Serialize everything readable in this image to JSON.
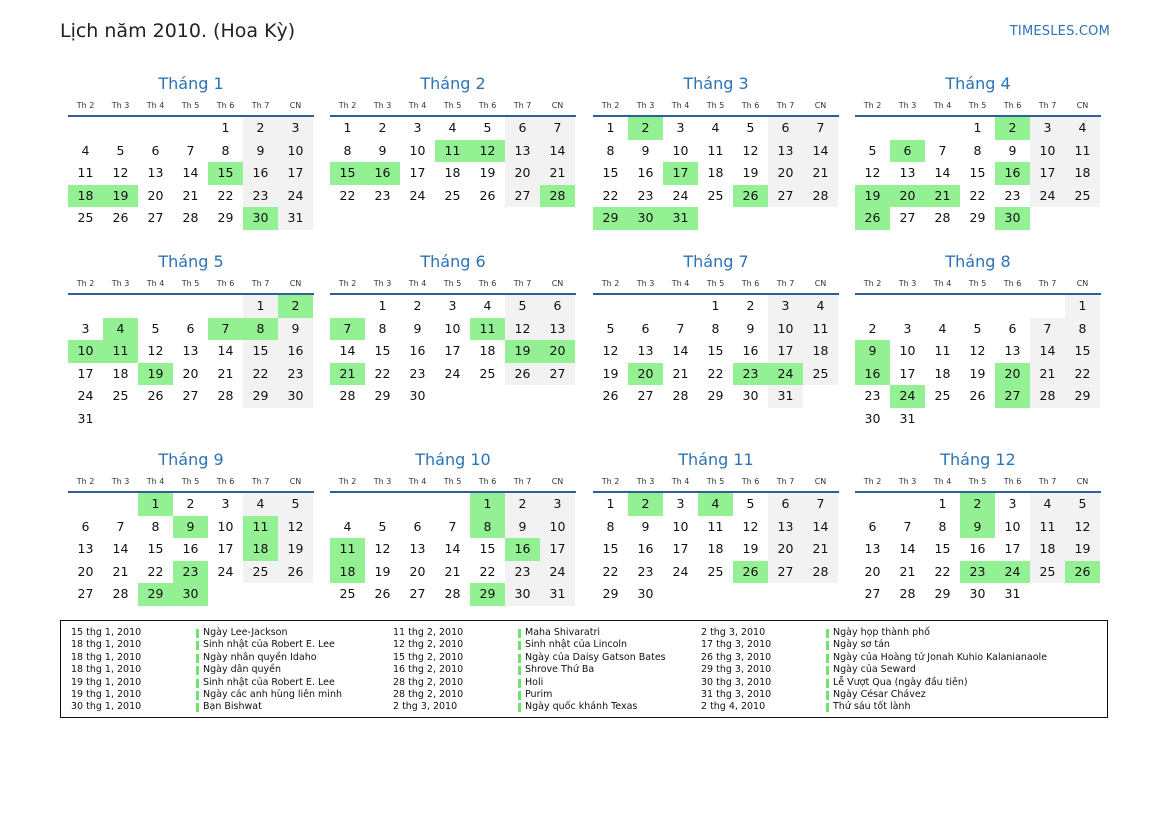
{
  "header": {
    "title": "Lịch năm 2010. (Hoa Kỳ)",
    "brand": "TIMESLES.COM"
  },
  "weekdays": [
    "Th 2",
    "Th 3",
    "Th 4",
    "Th 5",
    "Th 6",
    "Th 7",
    "CN"
  ],
  "months": [
    {
      "name": "Tháng 1",
      "offset": 4,
      "days": 31,
      "holidays": [
        15,
        18,
        19,
        30
      ]
    },
    {
      "name": "Tháng 2",
      "offset": 0,
      "days": 28,
      "holidays": [
        11,
        12,
        15,
        16,
        28
      ]
    },
    {
      "name": "Tháng 3",
      "offset": 0,
      "days": 31,
      "holidays": [
        2,
        17,
        26,
        29,
        30,
        31
      ]
    },
    {
      "name": "Tháng 4",
      "offset": 3,
      "days": 30,
      "holidays": [
        2,
        6,
        16,
        19,
        20,
        21,
        26,
        30
      ]
    },
    {
      "name": "Tháng 5",
      "offset": 5,
      "days": 31,
      "holidays": [
        2,
        4,
        7,
        8,
        10,
        11,
        19
      ]
    },
    {
      "name": "Tháng 6",
      "offset": 1,
      "days": 30,
      "holidays": [
        7,
        11,
        19,
        20,
        21
      ]
    },
    {
      "name": "Tháng 7",
      "offset": 3,
      "days": 31,
      "holidays": [
        20,
        23,
        24
      ]
    },
    {
      "name": "Tháng 8",
      "offset": 6,
      "days": 31,
      "holidays": [
        9,
        16,
        20,
        24,
        27
      ]
    },
    {
      "name": "Tháng 9",
      "offset": 2,
      "days": 30,
      "holidays": [
        1,
        9,
        11,
        18,
        23,
        29,
        30
      ]
    },
    {
      "name": "Tháng 10",
      "offset": 4,
      "days": 31,
      "holidays": [
        1,
        8,
        11,
        16,
        18,
        29
      ]
    },
    {
      "name": "Tháng 11",
      "offset": 0,
      "days": 30,
      "holidays": [
        2,
        4,
        26
      ]
    },
    {
      "name": "Tháng 12",
      "offset": 2,
      "days": 31,
      "holidays": [
        2,
        9,
        23,
        24,
        26
      ]
    }
  ],
  "legend": [
    [
      {
        "date": "15 thg 1, 2010",
        "name": "Ngày Lee-Jackson"
      },
      {
        "date": "18 thg 1, 2010",
        "name": "Sinh nhật của Robert E. Lee"
      },
      {
        "date": "18 thg 1, 2010",
        "name": "Ngày nhân quyền Idaho"
      },
      {
        "date": "18 thg 1, 2010",
        "name": "Ngày dân quyền"
      },
      {
        "date": "19 thg 1, 2010",
        "name": "Sinh nhật của Robert E. Lee"
      },
      {
        "date": "19 thg 1, 2010",
        "name": "Ngày các anh hùng liên minh"
      },
      {
        "date": "30 thg 1, 2010",
        "name": "Bạn Bishwat"
      }
    ],
    [
      {
        "date": "11 thg 2, 2010",
        "name": "Maha Shivaratri"
      },
      {
        "date": "12 thg 2, 2010",
        "name": "Sinh nhật của Lincoln"
      },
      {
        "date": "15 thg 2, 2010",
        "name": "Ngày của Daisy Gatson Bates"
      },
      {
        "date": "16 thg 2, 2010",
        "name": "Shrove Thứ Ba"
      },
      {
        "date": "28 thg 2, 2010",
        "name": "Holi"
      },
      {
        "date": "28 thg 2, 2010",
        "name": "Purim"
      },
      {
        "date": "2 thg 3, 2010",
        "name": "Ngày quốc khánh Texas"
      }
    ],
    [
      {
        "date": "2 thg 3, 2010",
        "name": "Ngày họp thành phố"
      },
      {
        "date": "17 thg 3, 2010",
        "name": "Ngày sơ tán"
      },
      {
        "date": "26 thg 3, 2010",
        "name": "Ngày của Hoàng tử Jonah Kuhio Kalanianaole"
      },
      {
        "date": "29 thg 3, 2010",
        "name": "Ngày của Seward"
      },
      {
        "date": "30 thg 3, 2010",
        "name": "Lễ Vượt Qua (ngày đầu tiên)"
      },
      {
        "date": "31 thg 3, 2010",
        "name": "Ngày César Chávez"
      },
      {
        "date": "2 thg 4, 2010",
        "name": "Thứ sáu tốt lành"
      }
    ]
  ]
}
